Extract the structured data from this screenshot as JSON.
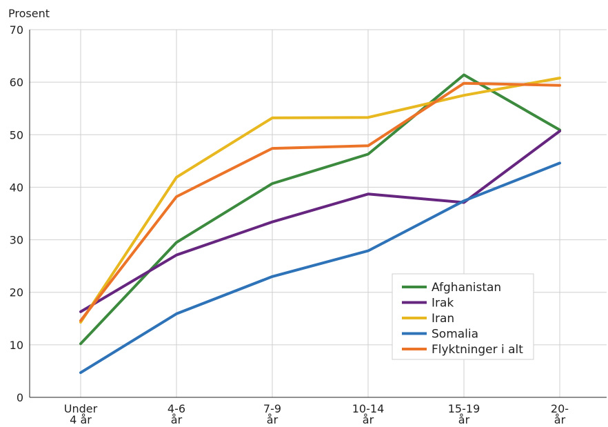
{
  "chart_data": {
    "type": "line",
    "title": "",
    "ylabel": "Prosent",
    "xlabel": "",
    "ylim": [
      0,
      70
    ],
    "yticks": [
      0,
      10,
      20,
      30,
      40,
      50,
      60,
      70
    ],
    "grid": true,
    "legend_position": "lower-right",
    "categories": [
      [
        "Under",
        "4 år"
      ],
      [
        "4-6",
        "år"
      ],
      [
        "7-9",
        "år"
      ],
      [
        "10-14",
        "år"
      ],
      [
        "15-19",
        "år"
      ],
      [
        "20-",
        "år"
      ]
    ],
    "series": [
      {
        "name": "Afghanistan",
        "color": "#3b8a3e",
        "values": [
          10.2,
          29.5,
          40.7,
          46.3,
          61.4,
          50.9
        ]
      },
      {
        "name": "Irak",
        "color": "#66267f",
        "values": [
          16.3,
          27.1,
          33.4,
          38.7,
          37.1,
          50.7
        ]
      },
      {
        "name": "Iran",
        "color": "#e8b820",
        "values": [
          14.3,
          41.9,
          53.2,
          53.3,
          57.5,
          60.8
        ]
      },
      {
        "name": "Somalia",
        "color": "#2e73b8",
        "values": [
          4.7,
          15.9,
          23.0,
          27.9,
          37.4,
          44.6
        ]
      },
      {
        "name": "Flyktninger i alt",
        "color": "#ec7429",
        "values": [
          14.6,
          38.2,
          47.4,
          47.9,
          59.8,
          59.4
        ]
      }
    ]
  }
}
